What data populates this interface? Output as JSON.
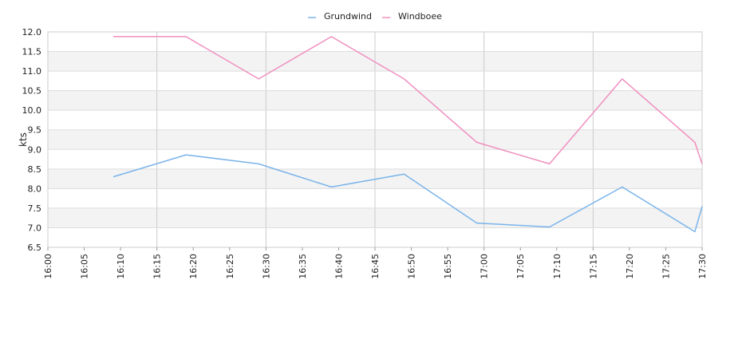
{
  "chart_data": {
    "type": "line",
    "ylabel": "kts",
    "ylim": [
      6.5,
      12.0
    ],
    "yticks": [
      "6.5",
      "7.0",
      "7.5",
      "8.0",
      "8.5",
      "9.0",
      "9.5",
      "10.0",
      "10.5",
      "11.0",
      "11.5",
      "12.0"
    ],
    "xlim": [
      "16:00",
      "17:30"
    ],
    "xticks": [
      "16:00",
      "16:05",
      "16:10",
      "16:15",
      "16:20",
      "16:25",
      "16:30",
      "16:35",
      "16:40",
      "16:45",
      "16:50",
      "16:55",
      "17:00",
      "17:05",
      "17:10",
      "17:15",
      "17:20",
      "17:25",
      "17:30"
    ],
    "legend_position": "top-center",
    "grid": true,
    "alternating_bands": true,
    "series": [
      {
        "name": "Grundwind",
        "color": "#7ab4ea",
        "x": [
          "16:09",
          "16:19",
          "16:29",
          "16:39",
          "16:49",
          "16:59",
          "17:09",
          "17:19",
          "17:29",
          "17:30"
        ],
        "values": [
          8.3,
          8.86,
          8.63,
          8.04,
          8.37,
          7.12,
          7.02,
          8.04,
          6.9,
          7.55
        ]
      },
      {
        "name": "Windboee",
        "color": "#f08fbf",
        "x": [
          "16:09",
          "16:19",
          "16:29",
          "16:39",
          "16:49",
          "16:59",
          "17:09",
          "17:19",
          "17:29",
          "17:30"
        ],
        "values": [
          11.88,
          11.88,
          10.8,
          11.88,
          10.8,
          9.18,
          8.63,
          10.8,
          9.18,
          8.63
        ]
      }
    ]
  }
}
